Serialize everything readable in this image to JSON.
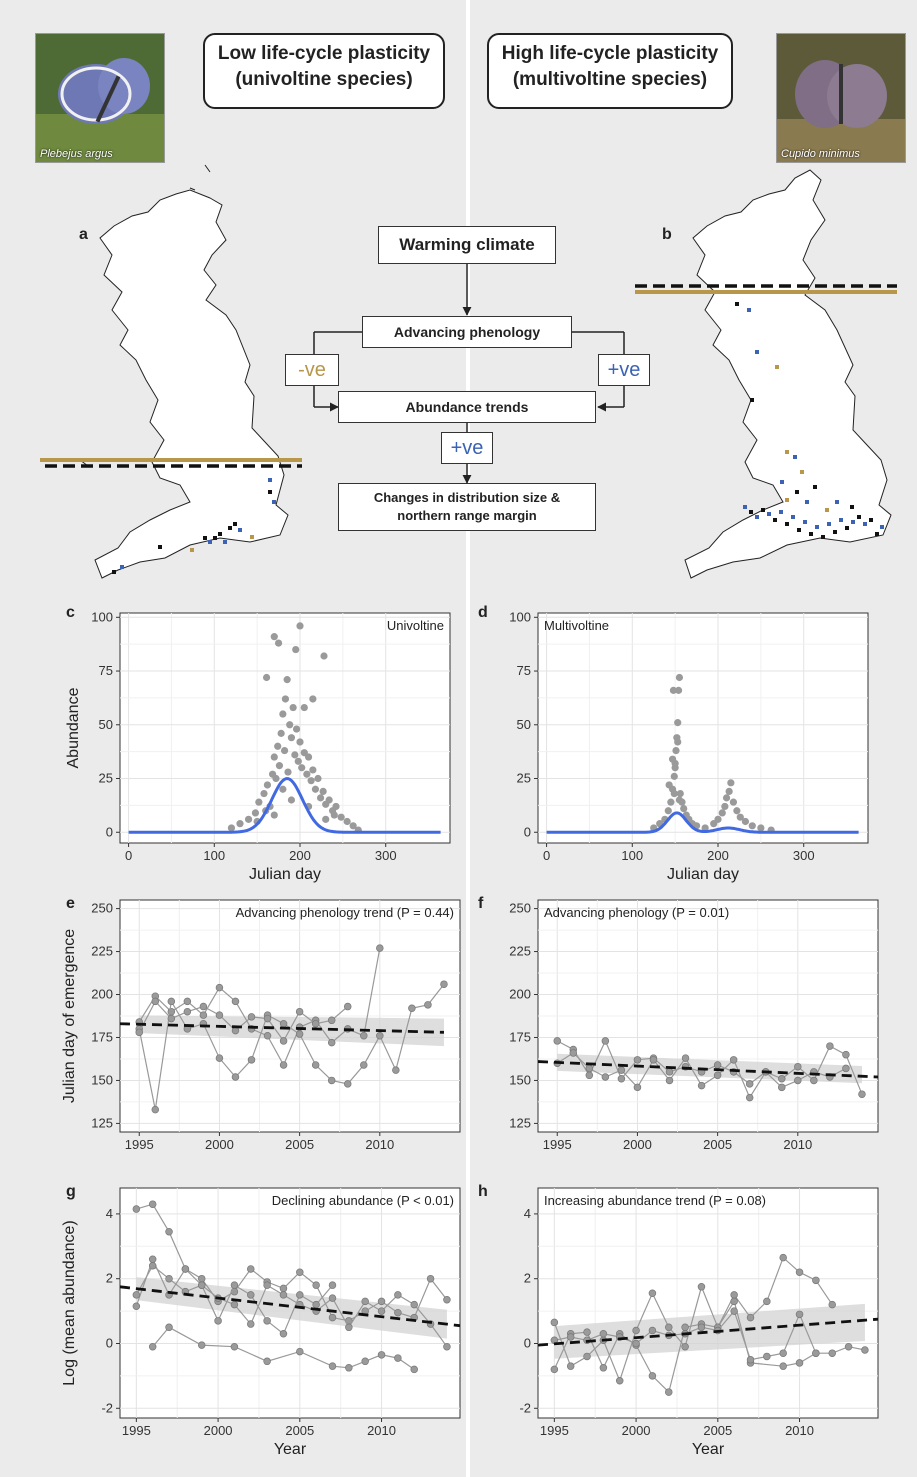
{
  "header": {
    "left_box": [
      "Low life-cycle plasticity",
      "(univoltine species)"
    ],
    "right_box": [
      "High life-cycle plasticity",
      "(multivoltine species)"
    ],
    "left_photo_caption": "Plebejus argus",
    "right_photo_caption": "Cupido minimus"
  },
  "panel_labels": {
    "a": "a",
    "b": "b",
    "c": "c",
    "d": "d",
    "e": "e",
    "f": "f",
    "g": "g",
    "h": "h"
  },
  "flowchart": {
    "warming": "Warming climate",
    "phenology": "Advancing phenology",
    "neg": "-ve",
    "pos": "+ve",
    "abundance": "Abundance trends",
    "pos2": "+ve",
    "changes_line1": "Changes in distribution size &",
    "changes_line2": "northern range margin"
  },
  "colors": {
    "gold": "#b8974b",
    "blue": "#3b62b5",
    "curve": "#4169e1",
    "points": "#9a9a9a",
    "panel": "#ebebeb"
  },
  "chart_data": [
    {
      "type": "scatter",
      "id": "c",
      "annotation": "Univoltine",
      "xlabel": "Julian day",
      "ylabel": "Abundance",
      "xlim": [
        -10,
        375
      ],
      "ylim": [
        -5,
        102
      ],
      "xticks": [
        0,
        100,
        200,
        300
      ],
      "yticks": [
        0,
        25,
        50,
        75,
        100
      ],
      "curve": {
        "mu": 185,
        "sd": 18,
        "peak": 25
      },
      "points": [
        [
          120,
          2
        ],
        [
          130,
          4
        ],
        [
          140,
          6
        ],
        [
          148,
          9
        ],
        [
          152,
          14
        ],
        [
          158,
          18
        ],
        [
          162,
          22
        ],
        [
          165,
          12
        ],
        [
          168,
          27
        ],
        [
          170,
          35
        ],
        [
          172,
          25
        ],
        [
          174,
          40
        ],
        [
          176,
          31
        ],
        [
          178,
          46
        ],
        [
          180,
          55
        ],
        [
          182,
          38
        ],
        [
          183,
          62
        ],
        [
          185,
          71
        ],
        [
          186,
          28
        ],
        [
          188,
          50
        ],
        [
          190,
          44
        ],
        [
          192,
          58
        ],
        [
          194,
          36
        ],
        [
          196,
          48
        ],
        [
          198,
          33
        ],
        [
          200,
          42
        ],
        [
          202,
          30
        ],
        [
          205,
          37
        ],
        [
          208,
          27
        ],
        [
          210,
          35
        ],
        [
          213,
          24
        ],
        [
          215,
          29
        ],
        [
          218,
          20
        ],
        [
          221,
          25
        ],
        [
          224,
          16
        ],
        [
          227,
          19
        ],
        [
          230,
          13
        ],
        [
          234,
          15
        ],
        [
          238,
          10
        ],
        [
          242,
          12
        ],
        [
          248,
          7
        ],
        [
          255,
          5
        ],
        [
          262,
          3
        ],
        [
          268,
          1
        ],
        [
          200,
          96
        ],
        [
          195,
          85
        ],
        [
          170,
          91
        ],
        [
          175,
          88
        ],
        [
          161,
          72
        ],
        [
          228,
          82
        ],
        [
          215,
          62
        ],
        [
          205,
          58
        ],
        [
          160,
          10
        ],
        [
          150,
          5
        ],
        [
          240,
          8
        ],
        [
          230,
          6
        ],
        [
          180,
          20
        ],
        [
          190,
          15
        ],
        [
          210,
          12
        ],
        [
          170,
          8
        ]
      ]
    },
    {
      "type": "scatter",
      "id": "d",
      "annotation": "Multivoltine",
      "xlabel": "Julian day",
      "ylabel": "",
      "xlim": [
        -10,
        375
      ],
      "ylim": [
        -5,
        102
      ],
      "xticks": [
        0,
        100,
        200,
        300
      ],
      "yticks": [
        0,
        25,
        50,
        75,
        100
      ],
      "curve": [
        {
          "mu": 152,
          "sd": 11,
          "peak": 9
        },
        {
          "mu": 212,
          "sd": 13,
          "peak": 2
        }
      ],
      "points": [
        [
          125,
          2
        ],
        [
          132,
          4
        ],
        [
          138,
          6
        ],
        [
          142,
          10
        ],
        [
          145,
          14
        ],
        [
          147,
          20
        ],
        [
          149,
          26
        ],
        [
          150,
          32
        ],
        [
          151,
          38
        ],
        [
          152,
          44
        ],
        [
          153,
          51
        ],
        [
          154,
          66
        ],
        [
          155,
          72
        ],
        [
          148,
          66
        ],
        [
          150,
          30
        ],
        [
          156,
          18
        ],
        [
          158,
          14
        ],
        [
          160,
          11
        ],
        [
          163,
          8
        ],
        [
          166,
          6
        ],
        [
          170,
          4
        ],
        [
          175,
          3
        ],
        [
          185,
          2
        ],
        [
          195,
          4
        ],
        [
          200,
          6
        ],
        [
          205,
          9
        ],
        [
          208,
          12
        ],
        [
          210,
          16
        ],
        [
          213,
          19
        ],
        [
          215,
          23
        ],
        [
          218,
          14
        ],
        [
          222,
          10
        ],
        [
          226,
          7
        ],
        [
          232,
          5
        ],
        [
          240,
          3
        ],
        [
          250,
          2
        ],
        [
          262,
          1
        ],
        [
          143,
          22
        ],
        [
          147,
          34
        ],
        [
          153,
          42
        ],
        [
          149,
          18
        ],
        [
          155,
          15
        ]
      ]
    },
    {
      "type": "line",
      "id": "e",
      "annotation": "Advancing phenology trend (P = 0.44)",
      "xlabel": "",
      "ylabel": "Julian day of emergence",
      "xlim": [
        1993.8,
        2015
      ],
      "ylim": [
        120,
        255
      ],
      "xticks": [
        1995,
        2000,
        2005,
        2010
      ],
      "yticks": [
        125,
        150,
        175,
        200,
        225,
        250
      ],
      "trend": {
        "x": [
          1993.8,
          2014
        ],
        "y": [
          183,
          178
        ]
      },
      "band": {
        "lo_start": 178,
        "hi_start": 188,
        "lo_end": 170,
        "hi_end": 186
      },
      "series": [
        {
          "x": [
            1995,
            1996,
            1997,
            1998,
            1999,
            2000,
            2001,
            2002,
            2003,
            2004,
            2005,
            2006,
            2007,
            2008,
            2009,
            2010
          ],
          "y": [
            184,
            199,
            190,
            196,
            188,
            204,
            196,
            180,
            176,
            159,
            181,
            185,
            172,
            180,
            176,
            227
          ]
        },
        {
          "x": [
            1995,
            1996,
            1997,
            1998,
            1999,
            2000,
            2001,
            2002,
            2003,
            2004,
            2005,
            2006,
            2007,
            2008,
            2009,
            2010,
            2011,
            2012,
            2013,
            2014
          ],
          "y": [
            180,
            133,
            196,
            180,
            183,
            163,
            152,
            162,
            188,
            183,
            177,
            159,
            150,
            148,
            159,
            176,
            156,
            192,
            194,
            206
          ]
        },
        {
          "x": [
            1995,
            1996,
            1997,
            1998,
            1999,
            2000,
            2001,
            2002,
            2003,
            2004,
            2005,
            2006,
            2007,
            2008
          ],
          "y": [
            178,
            196,
            186,
            190,
            193,
            188,
            179,
            187,
            186,
            173,
            190,
            183,
            185,
            193
          ]
        }
      ]
    },
    {
      "type": "line",
      "id": "f",
      "annotation": "Advancing phenology (P = 0.01)",
      "xlabel": "",
      "ylabel": "",
      "xlim": [
        1993.8,
        2015
      ],
      "ylim": [
        120,
        255
      ],
      "xticks": [
        1995,
        2000,
        2005,
        2010
      ],
      "yticks": [
        125,
        150,
        175,
        200,
        225,
        250
      ],
      "trend": {
        "x": [
          1993.8,
          2015
        ],
        "y": [
          161,
          152
        ]
      },
      "band": {
        "lo_start": 156,
        "hi_start": 166,
        "lo_end": 148,
        "hi_end": 158
      },
      "series": [
        {
          "x": [
            1995,
            1996,
            1997,
            1998,
            1999,
            2000,
            2001,
            2002,
            2003,
            2004,
            2005,
            2006,
            2007,
            2008,
            2009,
            2010,
            2011,
            2012,
            2013,
            2014
          ],
          "y": [
            173,
            168,
            153,
            173,
            151,
            162,
            163,
            155,
            158,
            155,
            159,
            155,
            148,
            155,
            151,
            158,
            150,
            170,
            165,
            142
          ]
        },
        {
          "x": [
            1995,
            1996,
            1997,
            1998,
            1999,
            2000,
            2001,
            2002,
            2003,
            2004,
            2005,
            2006,
            2007,
            2008,
            2009,
            2010,
            2011,
            2012,
            2013
          ],
          "y": [
            160,
            166,
            157,
            152,
            156,
            146,
            162,
            150,
            163,
            147,
            153,
            162,
            140,
            155,
            146,
            150,
            155,
            152,
            157
          ]
        }
      ]
    },
    {
      "type": "line",
      "id": "g",
      "annotation": "Declining abundance (P < 0.01)",
      "xlabel": "Year",
      "ylabel": "Log (mean abundance)",
      "xlim": [
        1994,
        2014.8
      ],
      "ylim": [
        -2.3,
        4.8
      ],
      "xticks": [
        1995,
        2000,
        2005,
        2010
      ],
      "yticks": [
        -2,
        0,
        2,
        4
      ],
      "trend": {
        "x": [
          1994,
          2014.8
        ],
        "y": [
          1.75,
          0.55
        ]
      },
      "band": {
        "lo_start": 1.4,
        "hi_start": 2.1,
        "lo_end": 0.1,
        "hi_end": 1.0
      },
      "series": [
        {
          "x": [
            1995,
            1996,
            1997,
            1998,
            1999,
            2000,
            2001,
            2002,
            2003,
            2004,
            2005,
            2006,
            2007,
            2008,
            2009,
            2010,
            2011,
            2012,
            2013,
            2014
          ],
          "y": [
            4.15,
            4.3,
            3.45,
            2.3,
            2.0,
            1.3,
            1.6,
            2.3,
            1.9,
            1.7,
            2.2,
            1.8,
            0.8,
            0.7,
            1.0,
            1.3,
            0.95,
            0.8,
            2.0,
            1.35
          ]
        },
        {
          "x": [
            1995,
            1996,
            1997,
            1998,
            1999,
            2000,
            2001,
            2002,
            2003,
            2004,
            2005,
            2006,
            2007,
            2008,
            2009,
            2010,
            2011,
            2012,
            2013,
            2014
          ],
          "y": [
            1.15,
            2.6,
            1.5,
            2.3,
            1.8,
            1.4,
            1.2,
            0.6,
            1.8,
            1.5,
            1.2,
            1.0,
            1.4,
            0.5,
            1.3,
            1.0,
            1.5,
            1.2,
            0.6,
            -0.1
          ]
        },
        {
          "x": [
            1995,
            1996,
            1997,
            1998,
            1999,
            2000,
            2001,
            2002,
            2003,
            2004,
            2005,
            2006,
            2007
          ],
          "y": [
            1.5,
            2.4,
            2.0,
            1.6,
            1.8,
            0.7,
            1.8,
            1.5,
            0.7,
            0.3,
            1.5,
            1.2,
            1.8
          ]
        },
        {
          "x": [
            1996,
            1997,
            1999,
            2001,
            2003,
            2005,
            2007,
            2008,
            2009,
            2010,
            2011,
            2012
          ],
          "y": [
            -0.1,
            0.5,
            -0.05,
            -0.1,
            -0.55,
            -0.25,
            -0.7,
            -0.75,
            -0.55,
            -0.35,
            -0.45,
            -0.8
          ]
        }
      ]
    },
    {
      "type": "line",
      "id": "h",
      "annotation": "Increasing abundance trend (P = 0.08)",
      "xlabel": "Year",
      "ylabel": "",
      "xlim": [
        1994,
        2014.8
      ],
      "ylim": [
        -2.3,
        4.8
      ],
      "xticks": [
        1995,
        2000,
        2005,
        2010
      ],
      "yticks": [
        -2,
        0,
        2,
        4
      ],
      "trend": {
        "x": [
          1994,
          2014.8
        ],
        "y": [
          -0.05,
          0.75
        ]
      },
      "band": {
        "lo_start": -0.5,
        "hi_start": 0.5,
        "lo_end": 0.1,
        "hi_end": 1.25
      },
      "series": [
        {
          "x": [
            1995,
            1996,
            1997,
            1998,
            1999,
            2000,
            2001,
            2002,
            2003,
            2004,
            2005,
            2006,
            2007,
            2008,
            2009,
            2010,
            2011,
            2012
          ],
          "y": [
            0.65,
            -0.7,
            -0.4,
            0.1,
            -1.15,
            0.4,
            1.55,
            0.5,
            -0.1,
            1.75,
            0.5,
            1.5,
            0.8,
            1.3,
            2.65,
            2.2,
            1.95,
            1.2
          ]
        },
        {
          "x": [
            1995,
            1996,
            1997,
            1998,
            1999,
            2000,
            2001,
            2002,
            2003,
            2004,
            2005,
            2006,
            2007,
            2009,
            2010,
            2011,
            2012,
            2013,
            2014
          ],
          "y": [
            -0.8,
            0.3,
            0.35,
            -0.75,
            0.3,
            -0.05,
            -1.0,
            -1.5,
            0.5,
            0.6,
            0.5,
            1.3,
            -0.6,
            -0.7,
            -0.6,
            -0.3,
            -0.3,
            -0.1,
            -0.2
          ]
        },
        {
          "x": [
            1995,
            1996,
            1997,
            1998,
            1999,
            2000,
            2001,
            2002,
            2003,
            2004,
            2005,
            2006,
            2007,
            2008,
            2009,
            2010,
            2011
          ],
          "y": [
            0.1,
            0.2,
            0.1,
            0.3,
            0.2,
            0.0,
            0.4,
            0.25,
            0.3,
            0.5,
            0.4,
            1.0,
            -0.5,
            -0.4,
            -0.3,
            0.9,
            -0.3
          ]
        }
      ]
    }
  ]
}
